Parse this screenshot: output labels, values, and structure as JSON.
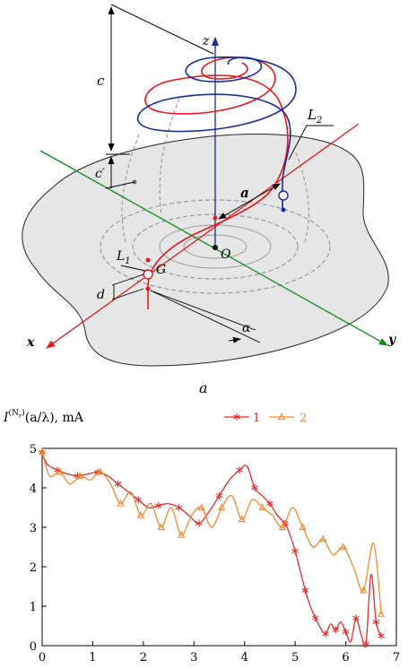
{
  "diagram": {
    "labels": {
      "z": "z",
      "x": "x",
      "y": "y",
      "c": "c",
      "c_prime": "c′",
      "L2": "L",
      "L2_sub": "2",
      "L1": "L",
      "L1_sub": "1",
      "a": "a",
      "O": "O",
      "G": "G",
      "d": "d",
      "alpha": "α"
    },
    "caption": "a",
    "colors": {
      "red": "#e8191e",
      "blue": "#1a2a9c",
      "green": "#0d8a1e",
      "surface": "#e6e6e6"
    }
  },
  "chart_data": {
    "type": "line",
    "ylabel_main": "I",
    "ylabel_sup": "(N",
    "ylabel_sub": "r",
    "ylabel_sup_end": ")",
    "ylabel_rest": "(a/λ), mA",
    "xlim": [
      0,
      7
    ],
    "ylim": [
      0,
      5
    ],
    "xticks": [
      "0",
      "1",
      "2",
      "3",
      "4",
      "5",
      "6",
      "7"
    ],
    "yticks": [
      "0",
      "1",
      "2",
      "3",
      "4",
      "5"
    ],
    "series": [
      {
        "name": "1",
        "color": "#e03030",
        "marker": "star",
        "x": [
          0,
          0.1,
          0.3,
          0.5,
          0.7,
          0.9,
          1.1,
          1.3,
          1.5,
          1.7,
          1.9,
          2.1,
          2.3,
          2.5,
          2.7,
          2.9,
          3.1,
          3.3,
          3.5,
          3.7,
          3.9,
          4.05,
          4.2,
          4.35,
          4.5,
          4.65,
          4.8,
          4.9,
          5.0,
          5.1,
          5.2,
          5.3,
          5.4,
          5.5,
          5.6,
          5.7,
          5.8,
          5.9,
          6.0,
          6.1,
          6.2,
          6.3,
          6.4,
          6.5,
          6.6,
          6.7
        ],
        "y": [
          4.9,
          4.6,
          4.45,
          4.35,
          4.3,
          4.35,
          4.4,
          4.3,
          4.1,
          3.9,
          3.7,
          3.5,
          3.55,
          3.6,
          3.5,
          3.3,
          3.1,
          3.4,
          3.8,
          4.2,
          4.45,
          4.55,
          4.0,
          3.8,
          3.6,
          3.3,
          3.1,
          2.8,
          2.4,
          1.9,
          1.4,
          1.0,
          0.7,
          0.45,
          0.3,
          0.55,
          0.4,
          0.6,
          0.35,
          0.1,
          0.7,
          0.3,
          0.05,
          1.8,
          0.6,
          0.25
        ]
      },
      {
        "name": "2",
        "color": "#f08a30",
        "marker": "triangle",
        "x": [
          0,
          0.15,
          0.35,
          0.55,
          0.75,
          0.95,
          1.15,
          1.35,
          1.55,
          1.75,
          1.95,
          2.15,
          2.35,
          2.55,
          2.75,
          2.95,
          3.15,
          3.35,
          3.55,
          3.75,
          3.95,
          4.15,
          4.35,
          4.55,
          4.75,
          4.95,
          5.15,
          5.35,
          5.55,
          5.75,
          5.95,
          6.15,
          6.35,
          6.55,
          6.7
        ],
        "y": [
          4.9,
          4.3,
          4.4,
          4.1,
          4.3,
          4.2,
          4.4,
          4.1,
          3.6,
          3.9,
          3.3,
          3.6,
          3.0,
          3.5,
          2.8,
          3.3,
          3.5,
          3.0,
          3.5,
          3.8,
          3.2,
          3.7,
          3.5,
          3.3,
          3.0,
          3.5,
          3.0,
          2.5,
          2.7,
          2.3,
          2.5,
          2.0,
          1.4,
          2.6,
          0.8
        ]
      }
    ]
  }
}
